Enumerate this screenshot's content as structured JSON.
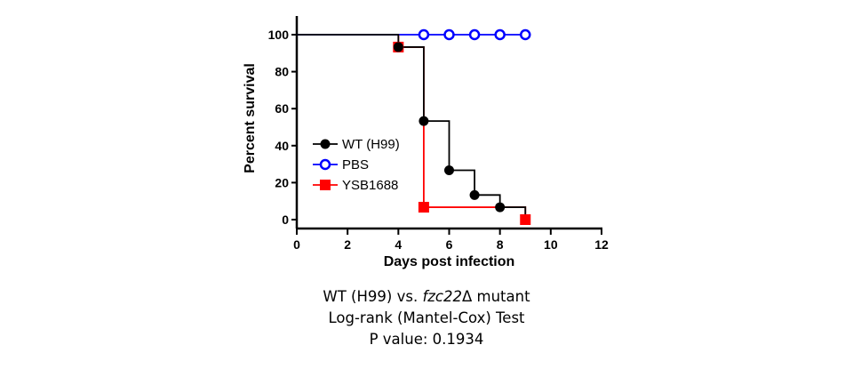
{
  "chart_data": {
    "type": "line",
    "subtype": "kaplan-meier survival",
    "xlabel": "Days post infection",
    "ylabel": "Percent survival",
    "xlim": [
      0,
      12
    ],
    "ylim": [
      0,
      100
    ],
    "xticks": [
      0,
      2,
      4,
      6,
      8,
      10,
      12
    ],
    "yticks": [
      0,
      20,
      40,
      60,
      80,
      100
    ],
    "legend_position": "left-center",
    "grid": false,
    "series": [
      {
        "name": "WT (H99)",
        "color": "#000000",
        "marker": "filled-circle",
        "steps": [
          [
            0,
            100
          ],
          [
            4,
            100
          ],
          [
            4,
            93.3
          ],
          [
            5,
            93.3
          ],
          [
            5,
            53.3
          ],
          [
            6,
            53.3
          ],
          [
            6,
            26.7
          ],
          [
            7,
            26.7
          ],
          [
            7,
            13.3
          ],
          [
            8,
            13.3
          ],
          [
            8,
            6.7
          ],
          [
            9,
            6.7
          ],
          [
            9,
            0
          ]
        ],
        "markers": [
          [
            4,
            93.3
          ],
          [
            5,
            53.3
          ],
          [
            6,
            26.7
          ],
          [
            7,
            13.3
          ],
          [
            8,
            6.7
          ]
        ]
      },
      {
        "name": "PBS",
        "color": "#0000ff",
        "marker": "open-circle",
        "steps": [
          [
            0,
            100
          ],
          [
            9,
            100
          ]
        ],
        "markers": [
          [
            5,
            100
          ],
          [
            6,
            100
          ],
          [
            7,
            100
          ],
          [
            8,
            100
          ],
          [
            9,
            100
          ]
        ]
      },
      {
        "name": "YSB1688",
        "color": "#ff0000",
        "marker": "filled-square",
        "steps": [
          [
            4,
            100
          ],
          [
            4,
            93.3
          ],
          [
            5,
            93.3
          ],
          [
            5,
            6.7
          ],
          [
            9,
            6.7
          ],
          [
            9,
            0
          ]
        ],
        "markers": [
          [
            4,
            93.3
          ],
          [
            5,
            6.7
          ],
          [
            9,
            0
          ]
        ]
      }
    ]
  },
  "caption": {
    "line1_pre": "WT (H99) vs. ",
    "line1_italic": "fzc22",
    "line1_post": "Δ mutant",
    "line2": "Log-rank (Mantel-Cox) Test",
    "line3": "P value: 0.1934"
  }
}
